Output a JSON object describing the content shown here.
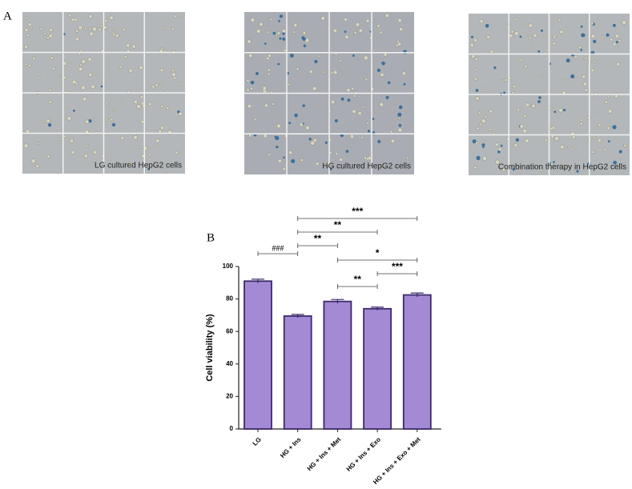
{
  "panel_a": {
    "label": "A",
    "captions": [
      "LG cultured HepG2 cells",
      "HG cultured HepG2 cells",
      "Combination therapy in HepG2 cells"
    ]
  },
  "chart_data": {
    "type": "bar",
    "panel_label": "B",
    "y_label": "Cell viability (%)",
    "categories": [
      "LG",
      "HG + Ins",
      "HG + Ins + Met",
      "HG + Ins + Exo",
      "HG + Ins + Exo + Met"
    ],
    "values": [
      91,
      69.5,
      78.5,
      74,
      82.5
    ],
    "errors": [
      1.2,
      1,
      1.2,
      1,
      1.2
    ],
    "color": "#a48ad4",
    "edge_color": "#3b2a6b",
    "ylim": [
      0,
      100
    ],
    "yticks": [
      0,
      20,
      40,
      60,
      80,
      100
    ],
    "comparisons": [
      {
        "from": 1,
        "to": 4,
        "label": "***"
      },
      {
        "from": 1,
        "to": 3,
        "label": "**"
      },
      {
        "from": 1,
        "to": 2,
        "label": "**"
      },
      {
        "from": 0,
        "to": 1,
        "label": "###"
      },
      {
        "from": 2,
        "to": 4,
        "label": "*"
      },
      {
        "from": 3,
        "to": 4,
        "label": "***"
      },
      {
        "from": 2,
        "to": 3,
        "label": "**"
      }
    ]
  }
}
